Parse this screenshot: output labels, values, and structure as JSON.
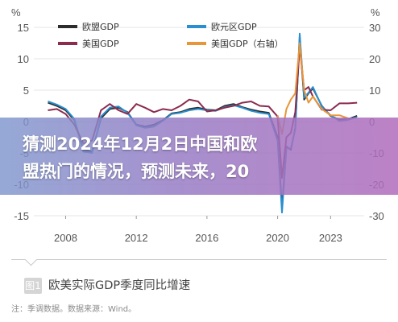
{
  "overlay": {
    "line1": "猜测2024年12月2日中国和欧",
    "line2": "盟热门的情况，预测未来，20"
  },
  "caption": {
    "badge": "图1",
    "title": "欧美实际GDP季度同比增速",
    "note": "注：季调数据。数据来源：Wind。"
  },
  "chart_data": {
    "type": "line",
    "left_axis": {
      "unit": "%",
      "ticks": [
        "15",
        "10",
        "5",
        "0",
        "-5",
        "-10",
        "-15"
      ],
      "ylim": [
        -15,
        15
      ]
    },
    "right_axis": {
      "unit": "%",
      "ticks": [
        "30",
        "20",
        "10",
        "0",
        "-10",
        "-20",
        "-30"
      ],
      "ylim": [
        -30,
        30
      ]
    },
    "x_ticks": [
      "2008",
      "2012",
      "2016",
      "2020",
      "2023"
    ],
    "legend_placement": "top",
    "series": [
      {
        "name": "欧盟GDP",
        "color": "#2d2d2d",
        "axis": "left",
        "x": [
          2007.0,
          2007.5,
          2008.0,
          2008.5,
          2009.0,
          2009.5,
          2010.0,
          2010.5,
          2011.0,
          2011.5,
          2012.0,
          2012.5,
          2013.0,
          2013.5,
          2014.0,
          2014.5,
          2015.0,
          2015.5,
          2016.0,
          2016.5,
          2017.0,
          2017.5,
          2018.0,
          2018.5,
          2019.0,
          2019.5,
          2020.0,
          2020.25,
          2020.5,
          2020.75,
          2021.0,
          2021.25,
          2021.5,
          2021.75,
          2022.0,
          2022.5,
          2023.0,
          2023.5,
          2024.0,
          2024.5
        ],
        "values": [
          3.0,
          2.5,
          1.8,
          0.2,
          -4.5,
          -4.8,
          0.5,
          2.0,
          2.2,
          1.5,
          -0.5,
          -0.8,
          -0.5,
          0.2,
          1.3,
          1.5,
          2.0,
          2.2,
          1.9,
          1.8,
          2.5,
          2.8,
          2.3,
          1.9,
          1.6,
          1.4,
          -2.5,
          -13.8,
          -4.0,
          -4.5,
          -1.0,
          13.5,
          3.5,
          4.5,
          5.3,
          2.5,
          0.9,
          0.3,
          0.4,
          0.9
        ]
      },
      {
        "name": "欧元区GDP",
        "color": "#2a8fd0",
        "axis": "left",
        "x": [
          2007.0,
          2007.5,
          2008.0,
          2008.5,
          2009.0,
          2009.5,
          2010.0,
          2010.5,
          2011.0,
          2011.5,
          2012.0,
          2012.5,
          2013.0,
          2013.5,
          2014.0,
          2014.5,
          2015.0,
          2015.5,
          2016.0,
          2016.5,
          2017.0,
          2017.5,
          2018.0,
          2018.5,
          2019.0,
          2019.5,
          2020.0,
          2020.25,
          2020.5,
          2020.75,
          2021.0,
          2021.25,
          2021.5,
          2021.75,
          2022.0,
          2022.5,
          2023.0,
          2023.5,
          2024.0,
          2024.5
        ],
        "values": [
          3.2,
          2.7,
          2.0,
          0.4,
          -4.8,
          -5.0,
          0.8,
          2.2,
          2.4,
          1.4,
          -0.6,
          -1.0,
          -0.8,
          0.1,
          1.2,
          1.4,
          1.8,
          2.0,
          1.8,
          1.7,
          2.3,
          2.6,
          2.2,
          1.7,
          1.4,
          1.2,
          -3.0,
          -14.5,
          -4.2,
          -4.3,
          -1.2,
          14.0,
          3.8,
          4.6,
          5.5,
          2.4,
          1.0,
          0.1,
          0.3,
          0.7
        ]
      },
      {
        "name": "美国GDP",
        "color": "#8b2b4e",
        "axis": "left",
        "x": [
          2007.0,
          2007.5,
          2008.0,
          2008.5,
          2009.0,
          2009.5,
          2010.0,
          2010.5,
          2011.0,
          2011.5,
          2012.0,
          2012.5,
          2013.0,
          2013.5,
          2014.0,
          2014.5,
          2015.0,
          2015.5,
          2016.0,
          2016.5,
          2017.0,
          2017.5,
          2018.0,
          2018.5,
          2019.0,
          2019.5,
          2020.0,
          2020.25,
          2020.5,
          2020.75,
          2021.0,
          2021.25,
          2021.5,
          2021.75,
          2022.0,
          2022.5,
          2023.0,
          2023.5,
          2024.0,
          2024.5
        ],
        "values": [
          1.8,
          2.0,
          1.2,
          -0.5,
          -3.5,
          -3.0,
          1.8,
          2.8,
          1.8,
          1.2,
          2.8,
          2.2,
          1.5,
          2.0,
          1.8,
          2.5,
          3.5,
          3.2,
          1.6,
          1.8,
          2.2,
          2.5,
          3.0,
          3.2,
          2.5,
          2.4,
          0.8,
          -9.0,
          -2.5,
          -1.8,
          1.5,
          12.0,
          5.0,
          5.5,
          4.0,
          1.9,
          1.8,
          2.9,
          2.9,
          3.0
        ]
      },
      {
        "name": "美国GDP（右轴）",
        "color": "#e8963a",
        "axis": "right",
        "x": [
          2020.0,
          2020.25,
          2020.5,
          2020.75,
          2021.0,
          2021.25,
          2021.5,
          2021.75,
          2022.0,
          2022.5,
          2023.0,
          2023.5,
          2024.0
        ],
        "values": [
          2.0,
          -4.0,
          4.0,
          7.0,
          9.0,
          25.0,
          10.0,
          6.0,
          8.0,
          4.0,
          2.0,
          2.0,
          1.0
        ]
      }
    ]
  }
}
